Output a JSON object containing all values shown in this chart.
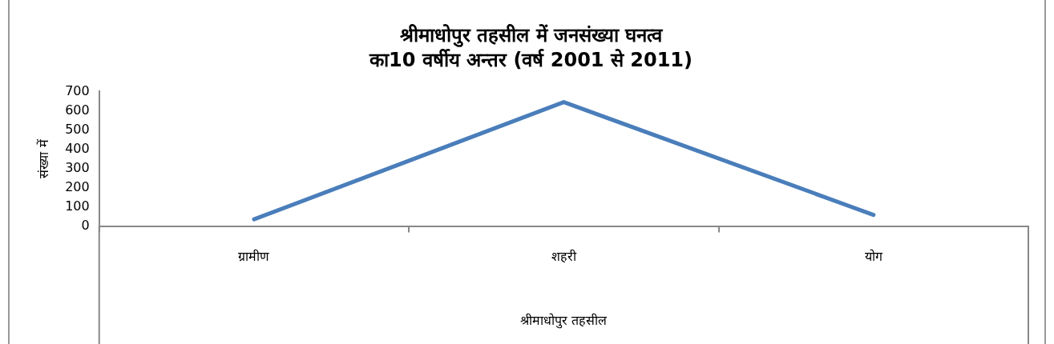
{
  "chart_data": {
    "type": "line",
    "title": "श्रीमाधोपुर तहसील में जनसंख्या घनत्व\nका10 वर्षीय अन्तर (वर्ष 2001 से 2011)",
    "xlabel": "श्रीमाधोपुर तहसील",
    "ylabel": "संख्या में",
    "categories": [
      "ग्रामीण",
      "शहरी",
      "योग"
    ],
    "series": [
      {
        "color": "#4a7ebb",
        "values": [
          35,
          645,
          58
        ]
      }
    ],
    "ylim": [
      0,
      700
    ],
    "yticks": [
      0,
      100,
      200,
      300,
      400,
      500,
      600,
      700
    ],
    "grid": false,
    "legend": false,
    "marker": "none",
    "line_style": "solid"
  }
}
